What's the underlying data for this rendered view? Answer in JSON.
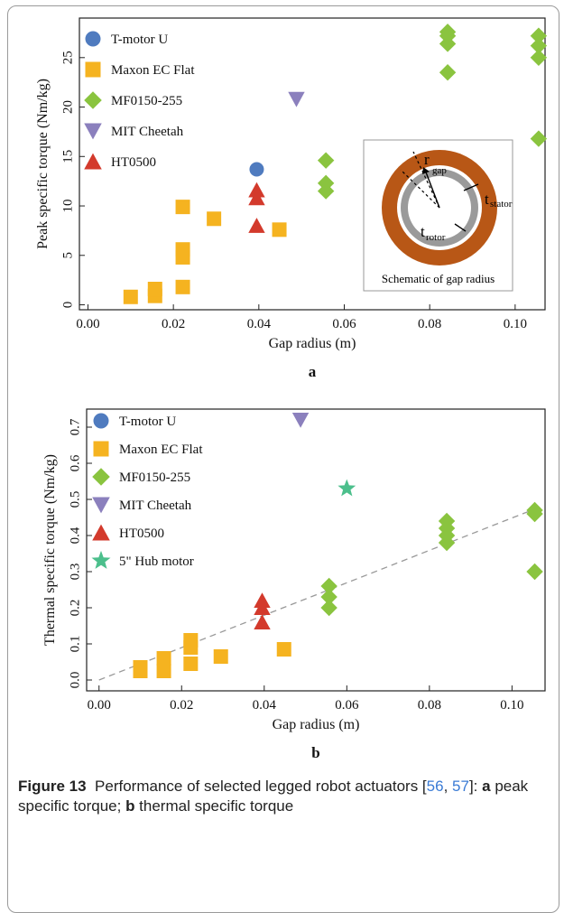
{
  "chart_data": [
    {
      "type": "scatter",
      "panel_label": "a",
      "xlabel": "Gap radius (m)",
      "ylabel": "Peak specific torque (Nm/kg)",
      "xlim": [
        -0.002,
        0.107
      ],
      "ylim": [
        -0.5,
        29
      ],
      "xticks": [
        "0.00",
        "0.02",
        "0.04",
        "0.06",
        "0.08",
        "0.10"
      ],
      "yticks": [
        "0",
        "5",
        "10",
        "15",
        "20",
        "25"
      ],
      "grid": false,
      "legend_position": "top-left",
      "series": [
        {
          "name": "T-motor U",
          "marker": "circle",
          "color": "#4f7bbf",
          "points": [
            [
              0.0395,
              13.7
            ]
          ]
        },
        {
          "name": "Maxon EC Flat",
          "marker": "square",
          "color": "#f5b320",
          "points": [
            [
              0.01,
              0.8
            ],
            [
              0.0157,
              0.9
            ],
            [
              0.0157,
              1.6
            ],
            [
              0.0222,
              1.8
            ],
            [
              0.0222,
              4.8
            ],
            [
              0.0222,
              5.6
            ],
            [
              0.0222,
              9.9
            ],
            [
              0.0295,
              8.7
            ],
            [
              0.0448,
              7.6
            ]
          ]
        },
        {
          "name": "MF0150-255",
          "marker": "diamond",
          "color": "#8ac43f",
          "points": [
            [
              0.0557,
              11.5
            ],
            [
              0.0557,
              12.3
            ],
            [
              0.0557,
              14.6
            ],
            [
              0.0842,
              23.5
            ],
            [
              0.0842,
              26.4
            ],
            [
              0.0842,
              27.2
            ],
            [
              0.0842,
              27.6
            ],
            [
              0.1055,
              16.8
            ],
            [
              0.1055,
              25.0
            ],
            [
              0.1055,
              26.2
            ],
            [
              0.1055,
              27.2
            ]
          ]
        },
        {
          "name": "MIT Cheetah",
          "marker": "triangle-down",
          "color": "#8b80bd",
          "points": [
            [
              0.0488,
              20.8
            ]
          ]
        },
        {
          "name": "HT0500",
          "marker": "triangle-up",
          "color": "#d33a2c",
          "points": [
            [
              0.0395,
              8.0
            ],
            [
              0.0395,
              10.8
            ],
            [
              0.0395,
              11.6
            ]
          ]
        }
      ],
      "inset": {
        "caption": "Schematic of gap radius",
        "labels": [
          "r",
          "gap",
          "t",
          "stator",
          "t",
          "rotor"
        ]
      }
    },
    {
      "type": "scatter",
      "panel_label": "b",
      "xlabel": "Gap radius (m)",
      "ylabel": "Thermal specific torque (Nm/kg)",
      "xlim": [
        -0.003,
        0.108
      ],
      "ylim": [
        -0.03,
        0.75
      ],
      "xticks": [
        "0.00",
        "0.02",
        "0.04",
        "0.06",
        "0.08",
        "0.10"
      ],
      "yticks": [
        "0.0",
        "0.1",
        "0.2",
        "0.3",
        "0.4",
        "0.5",
        "0.6",
        "0.7"
      ],
      "grid": false,
      "legend_position": "top-left",
      "trendline": {
        "style": "dashed",
        "color": "#999999",
        "from": [
          0.0,
          0.0
        ],
        "to": [
          0.107,
          0.48
        ]
      },
      "series": [
        {
          "name": "T-motor U",
          "marker": "circle",
          "color": "#4f7bbf",
          "points": []
        },
        {
          "name": "Maxon EC Flat",
          "marker": "square",
          "color": "#f5b320",
          "points": [
            [
              0.01,
              0.025
            ],
            [
              0.01,
              0.035
            ],
            [
              0.0157,
              0.025
            ],
            [
              0.0157,
              0.06
            ],
            [
              0.0222,
              0.045
            ],
            [
              0.0222,
              0.09
            ],
            [
              0.0222,
              0.11
            ],
            [
              0.0295,
              0.065
            ],
            [
              0.0448,
              0.085
            ]
          ]
        },
        {
          "name": "MF0150-255",
          "marker": "diamond",
          "color": "#8ac43f",
          "points": [
            [
              0.0557,
              0.2
            ],
            [
              0.0557,
              0.23
            ],
            [
              0.0557,
              0.26
            ],
            [
              0.0842,
              0.38
            ],
            [
              0.0842,
              0.4
            ],
            [
              0.0842,
              0.42
            ],
            [
              0.0842,
              0.44
            ],
            [
              0.1055,
              0.3
            ],
            [
              0.1055,
              0.46
            ],
            [
              0.1055,
              0.47
            ]
          ]
        },
        {
          "name": "MIT Cheetah",
          "marker": "triangle-down",
          "color": "#8b80bd",
          "points": [
            [
              0.0488,
              0.72
            ]
          ]
        },
        {
          "name": "HT0500",
          "marker": "triangle-up",
          "color": "#d33a2c",
          "points": [
            [
              0.0395,
              0.16
            ],
            [
              0.0395,
              0.2
            ],
            [
              0.0395,
              0.22
            ]
          ]
        },
        {
          "name": "5\" Hub motor",
          "marker": "star",
          "color": "#4cbf8c",
          "points": [
            [
              0.06,
              0.53
            ]
          ]
        }
      ]
    }
  ],
  "caption": {
    "label": "Figure 13",
    "text_before_refs": "Performance of selected legged robot actuators [",
    "ref1": "56",
    "sep": ", ",
    "ref2": "57",
    "text_after_refs": "]: ",
    "part_a": "a",
    "text_a": " peak specific torque; ",
    "part_b": "b",
    "text_b": " thermal specific torque"
  }
}
